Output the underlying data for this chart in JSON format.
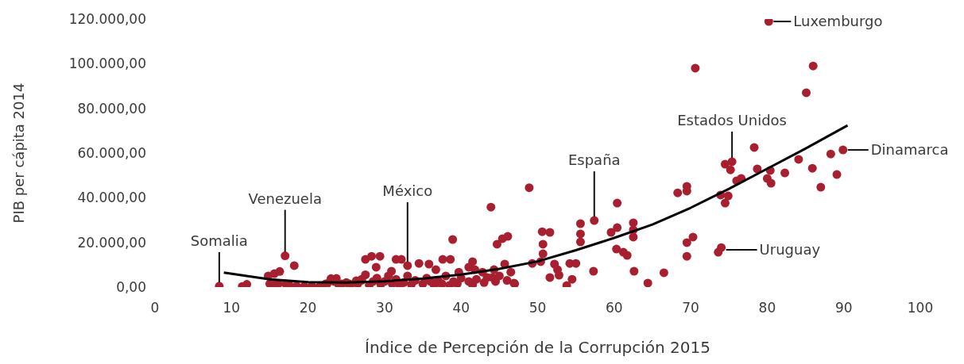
{
  "chart_data": {
    "type": "scatter",
    "xlabel": "Índice de Percepción de la Corrupción 2015",
    "ylabel": "PIB per cápita 2014",
    "xlim": [
      0,
      100
    ],
    "xticks": [
      0,
      10,
      20,
      30,
      40,
      50,
      60,
      70,
      80,
      90,
      100
    ],
    "ylim": [
      0,
      120000
    ],
    "yticks": [
      {
        "value": 0,
        "label": "0,00"
      },
      {
        "value": 20000,
        "label": "20.000,00"
      },
      {
        "value": 40000,
        "label": "40.000,00"
      },
      {
        "value": 60000,
        "label": "60.000,00"
      },
      {
        "value": 80000,
        "label": "80.000,00"
      },
      {
        "value": 100000,
        "label": "100.000,00"
      },
      {
        "value": 120000,
        "label": "120.000,00"
      }
    ],
    "grid": false,
    "legend": false,
    "series": [
      {
        "type": "scatter",
        "color": "#a8202f",
        "marker": "circle",
        "x": [
          8.4,
          11.4,
          12,
          17,
          18.2,
          14.8,
          15.6,
          16.3,
          15.3,
          16.1,
          17.1,
          22.3,
          23.4,
          23.7,
          24.4,
          25.4,
          26.3,
          27,
          48.9,
          43.9,
          38.9,
          44.7,
          45.4,
          46.1,
          50.6,
          51.6,
          55.6,
          55.6,
          55.6,
          50.7,
          50.7,
          49.3,
          50.4,
          52.2,
          52.6,
          51.6,
          52.8,
          54.2,
          55,
          54.5,
          53.8,
          46.5,
          46.9,
          45.7,
          44.3,
          33,
          37.6,
          38.6,
          41.5,
          27.5,
          28.3,
          29.4,
          31.5,
          32.2,
          34.5,
          35.8,
          28.9,
          30.9,
          36.7,
          39.7,
          41,
          41.8,
          42.8,
          43.4,
          44.1,
          57.4,
          60.4,
          60.4,
          59.6,
          62.5,
          62.5,
          62.5,
          60.3,
          61.2,
          61.7,
          57.3,
          62.6,
          64.4,
          66.5,
          68.3,
          69.5,
          69.5,
          69.5,
          70.3,
          69.5,
          74,
          73.6,
          73.9,
          74.9,
          74.5,
          74.5,
          75.4,
          75.2,
          76,
          76.6,
          78.3,
          78.7,
          80,
          80.4,
          80.5,
          82.3,
          84.1,
          85.9,
          87,
          88.3,
          89.1,
          89.9,
          80.2,
          70.6,
          86,
          85.1,
          15,
          17.5,
          18.5,
          19.5,
          20.5,
          21.5,
          22.5,
          23,
          24,
          25,
          25.5,
          26.5,
          27,
          27.5,
          28,
          28.5,
          29,
          29.5,
          30,
          30.5,
          31,
          31.5,
          32,
          32.5,
          33,
          33.5,
          34,
          35,
          35.5,
          36,
          36.5,
          37,
          37.5,
          38,
          38.5,
          39,
          39.5,
          40,
          41,
          41.5,
          42,
          43,
          44.5,
          45,
          46,
          47
        ],
        "values": [
          400,
          300,
          1200,
          14000,
          9600,
          5000,
          6000,
          7000,
          1400,
          1400,
          1400,
          1400,
          2500,
          3900,
          1400,
          1400,
          2800,
          3500,
          44500,
          35800,
          21300,
          19200,
          21700,
          22700,
          24800,
          24500,
          28400,
          23800,
          20200,
          19200,
          14900,
          10600,
          11400,
          10300,
          7800,
          4300,
          5300,
          10600,
          10600,
          3500,
          700,
          6700,
          1800,
          10300,
          7800,
          9600,
          12400,
          12400,
          11400,
          12400,
          13800,
          13800,
          12400,
          12400,
          10600,
          10300,
          8900,
          7100,
          7800,
          6700,
          8900,
          7800,
          6700,
          4300,
          4300,
          29800,
          37600,
          26600,
          24500,
          28800,
          25600,
          22400,
          17000,
          15600,
          14200,
          7100,
          7100,
          1800,
          6400,
          42200,
          45100,
          43000,
          19900,
          22400,
          13800,
          17700,
          15600,
          41200,
          40800,
          37600,
          55000,
          56100,
          52500,
          47600,
          48600,
          62500,
          52900,
          48600,
          52200,
          46500,
          51100,
          57200,
          53200,
          44700,
          59600,
          50400,
          61400,
          118900,
          98000,
          99000,
          87000,
          1500,
          1200,
          500,
          300,
          600,
          200,
          1500,
          3800,
          1200,
          2000,
          800,
          1500,
          3000,
          5500,
          1000,
          2500,
          4000,
          1200,
          2500,
          5000,
          1500,
          3500,
          800,
          2000,
          5000,
          1200,
          3000,
          1500,
          4000,
          2500,
          700,
          3000,
          1500,
          5000,
          800,
          2500,
          1500,
          4000,
          2500,
          1000,
          3500,
          2000,
          2500,
          5000,
          3000,
          1500
        ]
      },
      {
        "type": "line",
        "color": "#000000",
        "marker": "none",
        "line_style": "solid",
        "x": [
          9,
          15,
          20,
          25,
          30,
          35,
          40,
          45,
          50,
          55,
          60,
          65,
          70,
          75,
          80,
          85,
          90.5
        ],
        "values": [
          6500,
          3500,
          2200,
          2000,
          2600,
          3800,
          5600,
          8200,
          11500,
          16500,
          22000,
          28000,
          35500,
          44000,
          53000,
          62000,
          72400
        ]
      }
    ],
    "annotations": [
      {
        "text": "Luxemburgo",
        "x": 80.2,
        "y": 118900
      },
      {
        "text": "Estados Unidos",
        "x": 75.4,
        "y": 56100
      },
      {
        "text": "Dinamarca",
        "x": 89.9,
        "y": 61400
      },
      {
        "text": "España",
        "x": 57.4,
        "y": 29800
      },
      {
        "text": "Uruguay",
        "x": 74,
        "y": 16700
      },
      {
        "text": "México",
        "x": 33,
        "y": 9600
      },
      {
        "text": "Venezuela",
        "x": 17,
        "y": 14000
      },
      {
        "text": "Somalia",
        "x": 8.4,
        "y": 400
      }
    ]
  }
}
